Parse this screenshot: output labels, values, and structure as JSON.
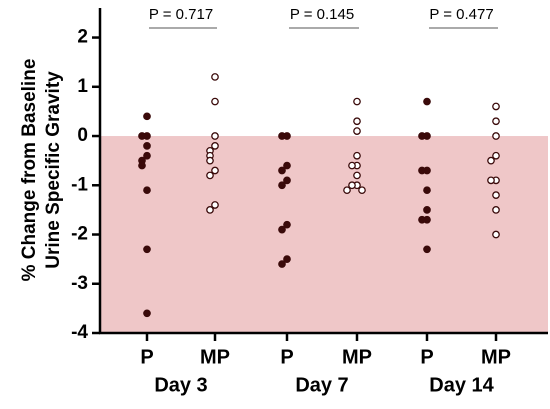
{
  "chart_data": {
    "type": "strip",
    "ylabel": [
      "% Change from Baseline",
      "Urine Specific Gravity"
    ],
    "categories": [
      "P",
      "MP",
      "P",
      "MP",
      "P",
      "MP"
    ],
    "groups": [
      "Day 3",
      "Day 7",
      "Day 14"
    ],
    "values": [
      [
        0.4,
        0,
        0,
        -0.2,
        -0.4,
        -0.5,
        -0.6,
        -1.1,
        -2.3,
        -3.6
      ],
      [
        1.2,
        0.7,
        0,
        -0.2,
        -0.3,
        -0.4,
        -0.5,
        -0.7,
        -0.8,
        -1.4,
        -1.5
      ],
      [
        0,
        0,
        -0.6,
        -0.7,
        -0.9,
        -1.0,
        -1.8,
        -1.9,
        -2.5,
        -2.6
      ],
      [
        0.7,
        0.3,
        0.1,
        -0.4,
        -0.6,
        -0.6,
        -0.8,
        -1.0,
        -1.0,
        -1.1,
        -1.1
      ],
      [
        0.7,
        0,
        0,
        -0.7,
        -0.7,
        -1.1,
        -1.5,
        -1.7,
        -1.7,
        -2.3
      ],
      [
        0.6,
        0.3,
        0,
        -0.4,
        -0.5,
        -0.9,
        -0.9,
        -1.2,
        -1.5,
        -2.0
      ]
    ],
    "filled": [
      true,
      false,
      true,
      false,
      true,
      false
    ],
    "color": "#3a0a0a",
    "annotations": [
      "P = 0.717",
      "P = 0.145",
      "P = 0.477"
    ],
    "shade_below": 0,
    "shade_color": "#efc7c8",
    "ylim": [
      -4,
      2.6
    ],
    "yticks": [
      -4,
      -3,
      -2,
      -1,
      0,
      1,
      2
    ]
  }
}
